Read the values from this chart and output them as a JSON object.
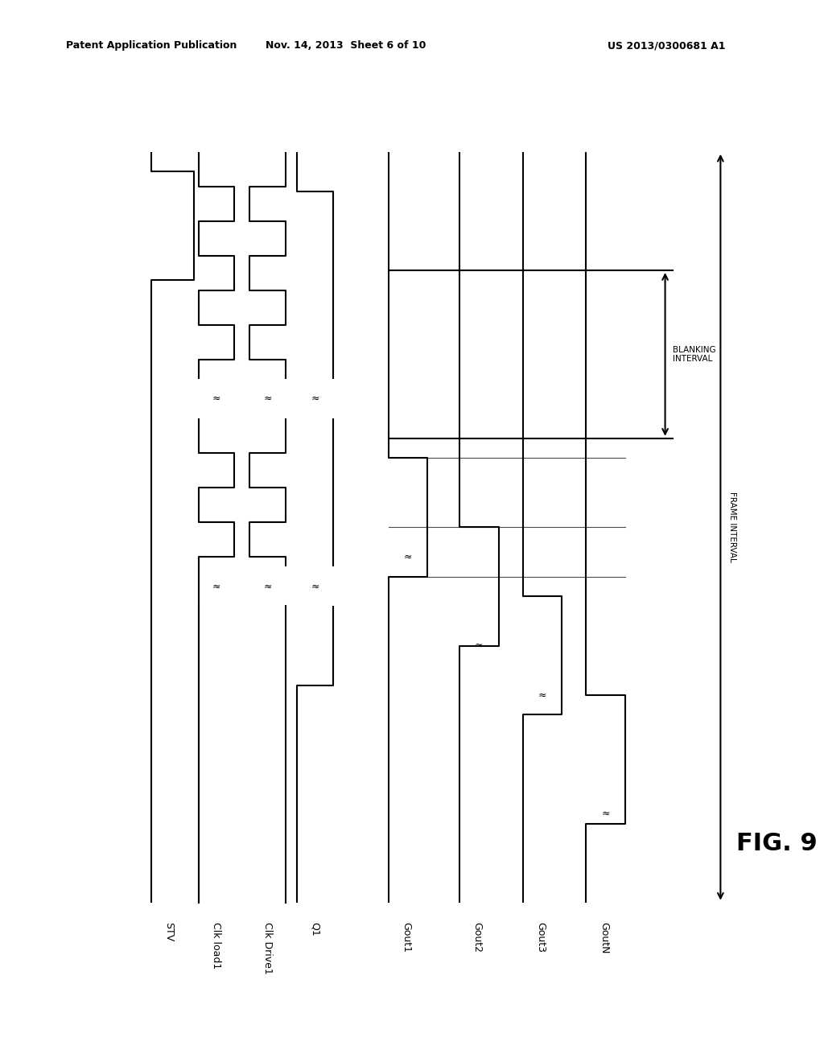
{
  "title_left": "Patent Application Publication",
  "title_mid": "Nov. 14, 2013  Sheet 6 of 10",
  "title_right": "US 2013/0300681 A1",
  "fig_label": "FIG. 9",
  "signals": [
    "STV",
    "Clk load1",
    "Clk Drive1",
    "Q1",
    "Gout1",
    "Gout2",
    "Gout3",
    "GoutN"
  ],
  "background": "#ffffff",
  "line_color": "#000000",
  "blanking_label": "BLANKING\nINTERVAL",
  "frame_label": "FRAME INTERVAL",
  "lw": 1.5
}
